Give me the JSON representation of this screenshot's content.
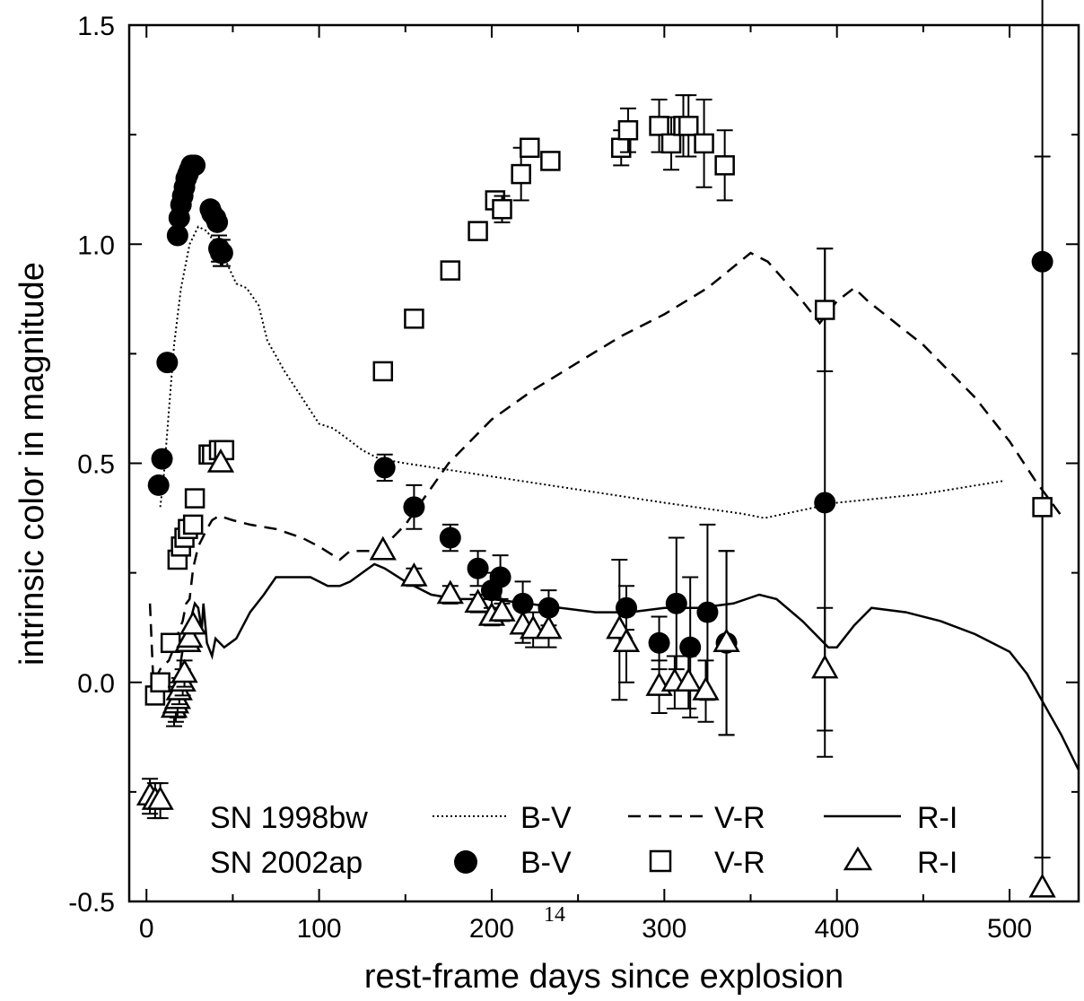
{
  "page_number": "14",
  "chart_data": {
    "type": "scatter",
    "title": "",
    "xlabel": "rest-frame days since explosion",
    "ylabel": "intrinsic color in magnitude",
    "xlim": [
      -10,
      540
    ],
    "ylim": [
      -0.5,
      1.5
    ],
    "x_ticks": [
      0,
      100,
      200,
      300,
      400,
      500
    ],
    "x_tick_labels": [
      "0",
      "100",
      "200",
      "300",
      "400",
      "500"
    ],
    "y_ticks": [
      -0.5,
      0.0,
      0.5,
      1.0,
      1.5
    ],
    "y_tick_labels": [
      "-0.5",
      "0.0",
      "0.5",
      "1.0",
      "1.5"
    ],
    "grid": false,
    "legend": {
      "placement": "bottom-left",
      "row1_object": "SN 1998bw",
      "row2_object": "SN 2002ap",
      "labels": [
        "B-V",
        "V-R",
        "R-I",
        "B-V",
        "V-R",
        "R-I"
      ]
    },
    "series": [
      {
        "name": "SN 1998bw B-V",
        "style": "dotted",
        "x": [
          8,
          10,
          13,
          16,
          20,
          25,
          30,
          35,
          40,
          45,
          52,
          58,
          65,
          70,
          80,
          90,
          100,
          108,
          115,
          125,
          135,
          150,
          200,
          250,
          300,
          345,
          358,
          370,
          400,
          450,
          497
        ],
        "y": [
          0.4,
          0.47,
          0.62,
          0.77,
          0.9,
          1.0,
          1.04,
          1.03,
          1.0,
          0.97,
          0.91,
          0.9,
          0.86,
          0.78,
          0.71,
          0.65,
          0.59,
          0.58,
          0.56,
          0.53,
          0.51,
          0.5,
          0.47,
          0.44,
          0.41,
          0.385,
          0.375,
          0.385,
          0.41,
          0.43,
          0.46
        ]
      },
      {
        "name": "SN 1998bw V-R",
        "style": "dashed",
        "x": [
          2,
          4,
          8,
          13,
          16,
          19,
          21,
          23,
          25,
          27,
          30,
          35,
          38,
          42,
          50,
          60,
          75,
          90,
          100,
          112,
          118,
          125,
          135,
          150,
          175,
          200,
          225,
          250,
          275,
          300,
          325,
          350,
          360,
          378,
          390,
          400,
          410,
          418,
          450,
          480,
          500,
          515,
          530
        ],
        "y": [
          0.18,
          0.0,
          0.03,
          0.05,
          0.08,
          0.12,
          0.14,
          0.18,
          0.19,
          0.26,
          0.31,
          0.35,
          0.37,
          0.38,
          0.37,
          0.36,
          0.35,
          0.33,
          0.31,
          0.28,
          0.3,
          0.3,
          0.3,
          0.36,
          0.5,
          0.6,
          0.67,
          0.73,
          0.79,
          0.84,
          0.9,
          0.98,
          0.96,
          0.88,
          0.82,
          0.87,
          0.9,
          0.87,
          0.77,
          0.65,
          0.55,
          0.46,
          0.38
        ]
      },
      {
        "name": "SN 1998bw R-I",
        "style": "solid",
        "x": [
          18,
          20,
          22,
          24,
          26,
          28,
          30,
          32,
          33,
          35,
          38,
          40,
          45,
          52,
          60,
          68,
          75,
          85,
          95,
          105,
          112,
          118,
          125,
          132,
          138,
          150,
          165,
          180,
          200,
          220,
          240,
          260,
          280,
          300,
          320,
          340,
          355,
          365,
          380,
          395,
          400,
          410,
          420,
          440,
          460,
          480,
          500,
          510,
          520,
          530,
          540
        ],
        "y": [
          -0.05,
          0.05,
          0.1,
          0.13,
          0.15,
          0.18,
          0.17,
          0.12,
          0.18,
          0.09,
          0.06,
          0.1,
          0.08,
          0.1,
          0.16,
          0.2,
          0.24,
          0.24,
          0.24,
          0.22,
          0.22,
          0.23,
          0.25,
          0.27,
          0.26,
          0.23,
          0.2,
          0.19,
          0.19,
          0.18,
          0.17,
          0.16,
          0.16,
          0.17,
          0.17,
          0.18,
          0.2,
          0.19,
          0.14,
          0.08,
          0.08,
          0.13,
          0.17,
          0.16,
          0.14,
          0.11,
          0.07,
          0.02,
          -0.05,
          -0.12,
          -0.2
        ]
      },
      {
        "name": "SN 2002ap B-V",
        "marker": "filled-circle",
        "x": [
          7,
          9,
          12,
          18,
          19,
          20,
          21,
          22,
          23,
          24,
          25,
          26,
          27,
          28,
          37,
          38,
          40,
          41,
          42,
          43,
          44,
          138,
          155,
          176,
          192,
          200,
          205,
          218,
          233,
          278,
          297,
          307,
          315,
          325,
          336,
          393,
          519
        ],
        "y": [
          0.45,
          0.51,
          0.73,
          1.02,
          1.06,
          1.09,
          1.11,
          1.13,
          1.15,
          1.16,
          1.17,
          1.18,
          1.18,
          1.18,
          1.08,
          1.07,
          1.06,
          1.05,
          0.99,
          0.98,
          0.98,
          0.49,
          0.4,
          0.33,
          0.26,
          0.21,
          0.24,
          0.18,
          0.17,
          0.17,
          0.09,
          0.18,
          0.08,
          0.16,
          0.09,
          0.41,
          0.96
        ],
        "err": [
          0,
          0,
          0,
          0,
          0,
          0,
          0,
          0,
          0,
          0,
          0,
          0,
          0,
          0,
          0,
          0,
          0,
          0,
          0.03,
          0.03,
          0.03,
          0.03,
          0.05,
          0.03,
          0.04,
          0.04,
          0.05,
          0.05,
          0.04,
          0.05,
          0.06,
          0.15,
          0.16,
          0.2,
          0.21,
          0.58,
          1.44
        ]
      },
      {
        "name": "SN 2002ap V-R",
        "marker": "open-square",
        "x": [
          5,
          8,
          14,
          18,
          20,
          22,
          24,
          27,
          28,
          36,
          38,
          42,
          45,
          137,
          155,
          176,
          192,
          202,
          206,
          217,
          222,
          234,
          275,
          279,
          297,
          304,
          311,
          314,
          323,
          335,
          393,
          519
        ],
        "y": [
          -0.03,
          0.0,
          0.09,
          0.28,
          0.31,
          0.33,
          0.35,
          0.36,
          0.42,
          0.52,
          0.52,
          0.53,
          0.53,
          0.71,
          0.83,
          0.94,
          1.03,
          1.1,
          1.08,
          1.16,
          1.22,
          1.19,
          1.22,
          1.26,
          1.27,
          1.23,
          1.27,
          1.27,
          1.23,
          1.18,
          0.85,
          0.4
        ],
        "err": [
          0,
          0,
          0,
          0,
          0,
          0,
          0,
          0,
          0,
          0,
          0,
          0,
          0,
          0.02,
          0.02,
          0.02,
          0.02,
          0.02,
          0.03,
          0.06,
          0.02,
          0.02,
          0.04,
          0.05,
          0.06,
          0.06,
          0.07,
          0.07,
          0.1,
          0.08,
          0.14,
          0.8
        ]
      },
      {
        "name": "SN 2002ap R-I",
        "marker": "open-triangle",
        "x": [
          2,
          5,
          8,
          16,
          17,
          18,
          19,
          21,
          22,
          24,
          25,
          27,
          43,
          137,
          155,
          176,
          192,
          200,
          206,
          218,
          224,
          233,
          274,
          278,
          297,
          306,
          314,
          324,
          336,
          393,
          519
        ],
        "y": [
          -0.26,
          -0.27,
          -0.27,
          -0.06,
          -0.05,
          -0.04,
          -0.02,
          0.0,
          0.02,
          0.09,
          0.1,
          0.13,
          0.5,
          0.3,
          0.24,
          0.2,
          0.18,
          0.15,
          0.16,
          0.13,
          0.12,
          0.12,
          0.12,
          0.09,
          -0.01,
          0.0,
          0.0,
          -0.02,
          0.09,
          0.03,
          -0.47
        ],
        "err": [
          0.04,
          0.04,
          0.04,
          0.04,
          0.04,
          0.04,
          0.03,
          0.03,
          0.03,
          0,
          0,
          0,
          0,
          0,
          0.02,
          0.02,
          0.02,
          0.02,
          0.02,
          0.04,
          0.04,
          0.04,
          0.16,
          0.09,
          0.06,
          0.06,
          0.06,
          0.07,
          0.21,
          0.14,
          0
        ]
      }
    ]
  }
}
